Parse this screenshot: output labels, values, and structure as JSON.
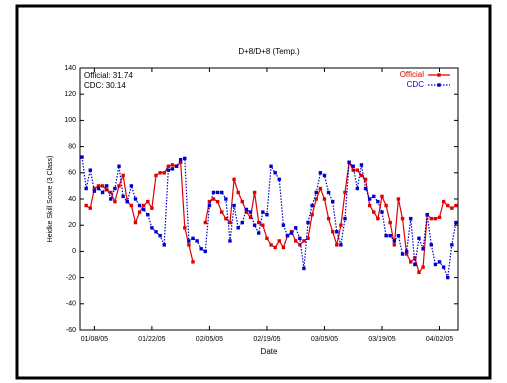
{
  "chart_data": {
    "type": "line",
    "title": "D+8/D+8 (Temp.)",
    "xlabel": "Date",
    "ylabel": "Heidke Skill Score (3 Class)",
    "annotations": [
      "Official: 31.74",
      "CDC: 30.14"
    ],
    "x": [
      "01/05/05",
      "01/06/05",
      "01/07/05",
      "01/08/05",
      "01/09/05",
      "01/10/05",
      "01/11/05",
      "01/12/05",
      "01/13/05",
      "01/14/05",
      "01/15/05",
      "01/16/05",
      "01/17/05",
      "01/18/05",
      "01/19/05",
      "01/20/05",
      "01/21/05",
      "01/22/05",
      "01/23/05",
      "01/24/05",
      "01/25/05",
      "01/26/05",
      "01/27/05",
      "01/28/05",
      "01/29/05",
      "01/30/05",
      "01/31/05",
      "02/01/05",
      "02/02/05",
      "02/03/05",
      "02/04/05",
      "02/05/05",
      "02/06/05",
      "02/07/05",
      "02/08/05",
      "02/09/05",
      "02/10/05",
      "02/11/05",
      "02/12/05",
      "02/13/05",
      "02/14/05",
      "02/15/05",
      "02/16/05",
      "02/17/05",
      "02/18/05",
      "02/19/05",
      "02/20/05",
      "02/21/05",
      "02/22/05",
      "02/23/05",
      "02/24/05",
      "02/25/05",
      "02/26/05",
      "02/27/05",
      "02/28/05",
      "03/01/05",
      "03/02/05",
      "03/03/05",
      "03/04/05",
      "03/05/05",
      "03/06/05",
      "03/07/05",
      "03/08/05",
      "03/09/05",
      "03/10/05",
      "03/11/05",
      "03/12/05",
      "03/13/05",
      "03/14/05",
      "03/15/05",
      "03/16/05",
      "03/17/05",
      "03/18/05",
      "03/19/05",
      "03/20/05",
      "03/21/05",
      "03/22/05",
      "03/23/05",
      "03/24/05",
      "03/25/05",
      "03/26/05",
      "03/27/05",
      "03/28/05",
      "03/29/05",
      "03/30/05",
      "03/31/05",
      "04/01/05",
      "04/02/05",
      "04/03/05",
      "04/04/05",
      "04/05/05",
      "04/06/05"
    ],
    "series": [
      {
        "name": "Official",
        "color": "#e00000",
        "line_style": "solid",
        "marker": "square",
        "values": [
          null,
          35,
          33,
          48,
          50,
          50,
          47,
          45,
          38,
          50,
          58,
          38,
          35,
          22,
          30,
          35,
          38,
          33,
          58,
          60,
          60,
          65,
          66,
          65,
          68,
          18,
          5,
          -8,
          null,
          null,
          22,
          38,
          40,
          38,
          30,
          25,
          22,
          55,
          45,
          38,
          30,
          26,
          45,
          22,
          20,
          10,
          5,
          3,
          8,
          3,
          12,
          15,
          8,
          5,
          8,
          10,
          28,
          40,
          48,
          40,
          25,
          15,
          5,
          20,
          45,
          68,
          62,
          62,
          58,
          55,
          35,
          30,
          25,
          42,
          35,
          22,
          5,
          40,
          25,
          -2,
          -8,
          -5,
          -16,
          -12,
          28,
          25,
          25,
          26,
          38,
          35,
          33,
          35
        ]
      },
      {
        "name": "CDC",
        "color": "#0000cc",
        "line_style": "dotted",
        "marker": "square",
        "values": [
          72,
          48,
          62,
          46,
          48,
          45,
          50,
          40,
          48,
          65,
          42,
          38,
          50,
          40,
          35,
          32,
          28,
          18,
          15,
          12,
          5,
          62,
          63,
          65,
          70,
          71,
          8,
          10,
          8,
          2,
          0,
          35,
          45,
          45,
          45,
          40,
          8,
          35,
          18,
          22,
          32,
          30,
          20,
          14,
          30,
          28,
          65,
          60,
          55,
          20,
          12,
          14,
          18,
          10,
          -13,
          22,
          35,
          45,
          60,
          58,
          45,
          38,
          15,
          5,
          25,
          68,
          65,
          48,
          66,
          48,
          40,
          42,
          38,
          30,
          12,
          12,
          8,
          12,
          -2,
          0,
          25,
          -10,
          10,
          2,
          28,
          5,
          -10,
          -8,
          -12,
          -20,
          5,
          22
        ]
      }
    ],
    "xticks": [
      "01/08/05",
      "01/22/05",
      "02/05/05",
      "02/19/05",
      "03/05/05",
      "03/19/05",
      "04/02/05"
    ],
    "ylim": [
      -60,
      140
    ],
    "yticks": [
      -60,
      -40,
      -20,
      0,
      20,
      40,
      60,
      80,
      100,
      120,
      140
    ],
    "grid": false,
    "legend": "upper right"
  }
}
